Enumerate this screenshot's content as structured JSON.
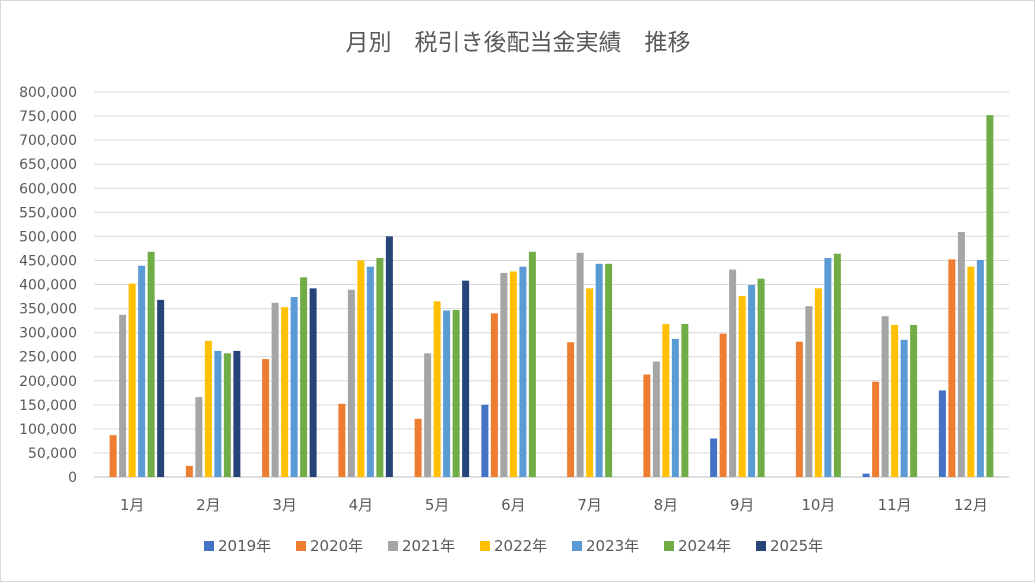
{
  "chart_data": {
    "type": "bar",
    "title": "月別　税引き後配当金実績　推移",
    "categories": [
      "1月",
      "2月",
      "3月",
      "4月",
      "5月",
      "6月",
      "7月",
      "8月",
      "9月",
      "10月",
      "11月",
      "12月"
    ],
    "ylim": [
      0,
      800000
    ],
    "yticks": [
      0,
      50000,
      100000,
      150000,
      200000,
      250000,
      300000,
      350000,
      400000,
      450000,
      500000,
      550000,
      600000,
      650000,
      700000,
      750000,
      800000
    ],
    "ytick_labels": [
      "0",
      "50,000",
      "100,000",
      "150,000",
      "200,000",
      "250,000",
      "300,000",
      "350,000",
      "400,000",
      "450,000",
      "500,000",
      "550,000",
      "600,000",
      "650,000",
      "700,000",
      "750,000",
      "800,000"
    ],
    "grid": true,
    "legend": "bottom",
    "series": [
      {
        "name": "2019年",
        "color": "#4472C4",
        "values": [
          0,
          0,
          0,
          0,
          0,
          150000,
          0,
          0,
          80000,
          0,
          7000,
          180000
        ]
      },
      {
        "name": "2020年",
        "color": "#ED7D31",
        "values": [
          87000,
          23000,
          245000,
          152000,
          121000,
          340000,
          280000,
          213000,
          298000,
          281000,
          198000,
          452000
        ]
      },
      {
        "name": "2021年",
        "color": "#A5A5A5",
        "values": [
          337000,
          166000,
          362000,
          389000,
          257000,
          424000,
          466000,
          240000,
          431000,
          355000,
          334000,
          509000
        ]
      },
      {
        "name": "2022年",
        "color": "#FFC000",
        "values": [
          402000,
          283000,
          353000,
          450000,
          365000,
          427000,
          392000,
          318000,
          376000,
          392000,
          316000,
          437000
        ]
      },
      {
        "name": "2023年",
        "color": "#5B9BD5",
        "values": [
          439000,
          262000,
          374000,
          437000,
          346000,
          437000,
          443000,
          287000,
          399000,
          455000,
          285000,
          451000
        ]
      },
      {
        "name": "2024年",
        "color": "#70AD47",
        "values": [
          468000,
          257000,
          415000,
          455000,
          347000,
          468000,
          443000,
          318000,
          412000,
          464000,
          316000,
          752000
        ]
      },
      {
        "name": "2025年",
        "color": "#264478",
        "values": [
          368000,
          262000,
          392000,
          500000,
          408000,
          null,
          null,
          null,
          null,
          null,
          null,
          null
        ]
      }
    ]
  }
}
